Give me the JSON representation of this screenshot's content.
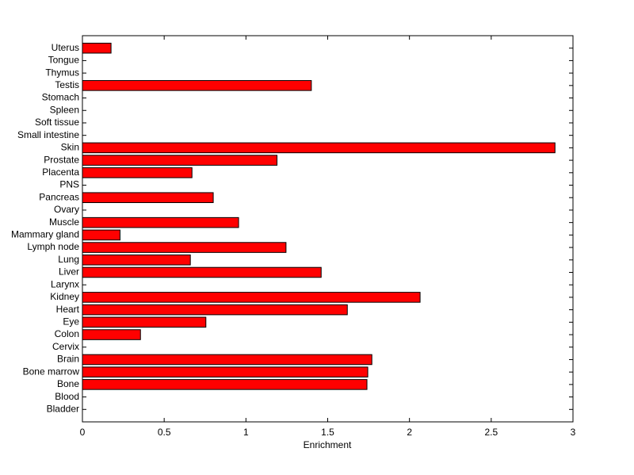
{
  "chart_data": {
    "type": "barh",
    "xlabel": "Enrichment",
    "categories": [
      "Bladder",
      "Blood",
      "Bone",
      "Bone marrow",
      "Brain",
      "Cervix",
      "Colon",
      "Eye",
      "Heart",
      "Kidney",
      "Larynx",
      "Liver",
      "Lung",
      "Lymph node",
      "Mammary gland",
      "Muscle",
      "Ovary",
      "Pancreas",
      "PNS",
      "Placenta",
      "Prostate",
      "Skin",
      "Small intestine",
      "Soft tissue",
      "Spleen",
      "Stomach",
      "Testis",
      "Thymus",
      "Tongue",
      "Uterus"
    ],
    "values": [
      0,
      0,
      1.74,
      1.745,
      1.77,
      0,
      0.355,
      0.755,
      1.62,
      2.065,
      0,
      1.46,
      0.66,
      1.245,
      0.23,
      0.955,
      0,
      0.8,
      0,
      0.67,
      1.19,
      2.89,
      0,
      0,
      0,
      0,
      1.4,
      0,
      0,
      0.175
    ],
    "color": "#ff0000",
    "xlim": [
      0,
      3
    ],
    "xticks": [
      0,
      0.5,
      1,
      1.5,
      2,
      2.5,
      3
    ]
  }
}
